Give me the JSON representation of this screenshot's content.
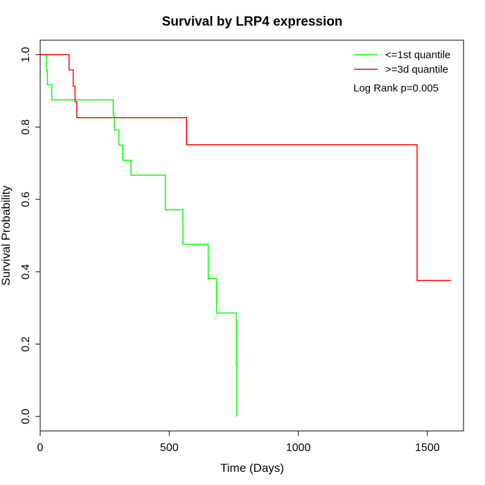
{
  "chart_data": {
    "type": "line",
    "title": "Survival by LRP4 expression",
    "xlabel": "Time (Days)",
    "ylabel": "Survival Probability",
    "xlim": [
      0,
      1640
    ],
    "ylim": [
      -0.04,
      1.04
    ],
    "x_ticks": [
      0,
      500,
      1000,
      1500
    ],
    "x_tick_labels": [
      "0",
      "500",
      "1000",
      "1500"
    ],
    "y_ticks": [
      0.0,
      0.2,
      0.4,
      0.6,
      0.8,
      1.0
    ],
    "y_tick_labels": [
      "0.0",
      "0.2",
      "0.4",
      "0.6",
      "0.8",
      "1.0"
    ],
    "legend_position": "top-right",
    "annotation": "Log Rank p=0.005",
    "series": [
      {
        "name": "<=1st quantile",
        "color": "#00ff00",
        "steps": [
          {
            "x": 0,
            "y": 1.0
          },
          {
            "x": 25,
            "y": 0.958
          },
          {
            "x": 28,
            "y": 0.917
          },
          {
            "x": 45,
            "y": 0.875
          },
          {
            "x": 283,
            "y": 0.833
          },
          {
            "x": 287,
            "y": 0.792
          },
          {
            "x": 305,
            "y": 0.75
          },
          {
            "x": 320,
            "y": 0.708
          },
          {
            "x": 352,
            "y": 0.667
          },
          {
            "x": 485,
            "y": 0.571
          },
          {
            "x": 553,
            "y": 0.476
          },
          {
            "x": 651,
            "y": 0.381
          },
          {
            "x": 683,
            "y": 0.286
          },
          {
            "x": 760,
            "y": 0.143
          },
          {
            "x": 762,
            "y": 0.0
          }
        ],
        "end_x": 762
      },
      {
        "name": ">=3d quantile",
        "color": "#ff0000",
        "steps": [
          {
            "x": 0,
            "y": 1.0
          },
          {
            "x": 112,
            "y": 0.958
          },
          {
            "x": 128,
            "y": 0.913
          },
          {
            "x": 135,
            "y": 0.87
          },
          {
            "x": 142,
            "y": 0.826
          },
          {
            "x": 567,
            "y": 0.751
          },
          {
            "x": 1460,
            "y": 0.376
          }
        ],
        "end_x": 1592
      }
    ]
  }
}
